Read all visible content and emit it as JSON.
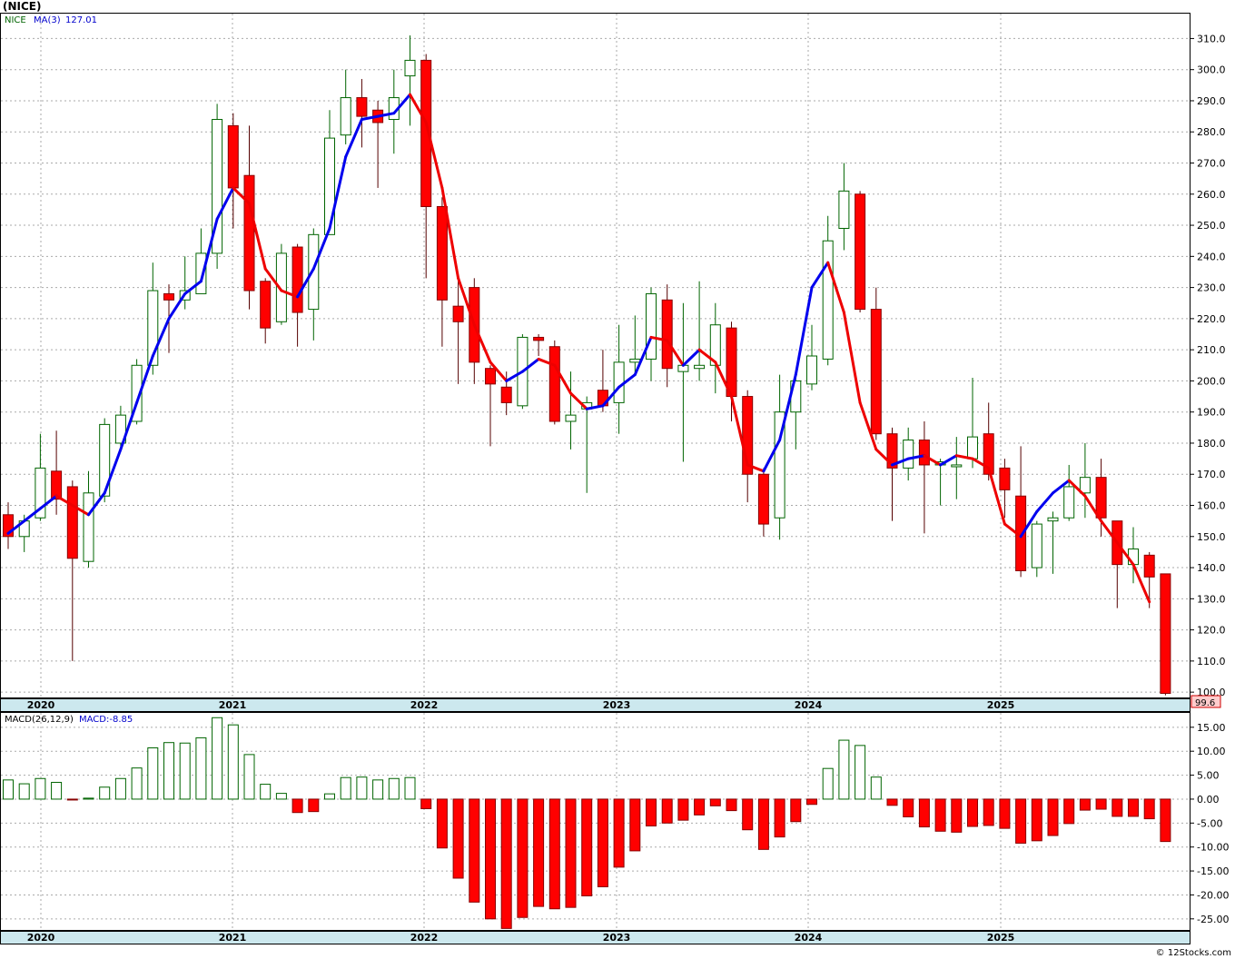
{
  "chart_data": [
    {
      "type": "candlestick",
      "title": "(NICE)",
      "symbol": "NICE",
      "ma_label": "MA(3)",
      "ma_value": "127.01",
      "last_price_label": "99.6",
      "ylim": [
        98,
        318
      ],
      "y_ticks": [
        100,
        110,
        120,
        130,
        140,
        150,
        160,
        170,
        180,
        190,
        200,
        210,
        220,
        230,
        240,
        250,
        260,
        270,
        280,
        290,
        300,
        310
      ],
      "y_tick_labels": [
        "100.0",
        "110.0",
        "120.0",
        "130.0",
        "140.0",
        "150.0",
        "160.0",
        "170.0",
        "180.0",
        "190.0",
        "200.0",
        "210.0",
        "220.0",
        "230.0",
        "240.0",
        "250.0",
        "260.0",
        "270.0",
        "280.0",
        "290.0",
        "300.0",
        "310.0"
      ],
      "x_year_labels": [
        "2020",
        "2021",
        "2022",
        "2023",
        "2024",
        "2025"
      ],
      "candles": [
        {
          "o": 157,
          "h": 161,
          "l": 146,
          "c": 150
        },
        {
          "o": 150,
          "h": 157,
          "l": 145,
          "c": 155
        },
        {
          "o": 156,
          "h": 183,
          "l": 155,
          "c": 172
        },
        {
          "o": 171,
          "h": 184,
          "l": 157,
          "c": 162
        },
        {
          "o": 166,
          "h": 168,
          "l": 110,
          "c": 143
        },
        {
          "o": 142,
          "h": 171,
          "l": 140,
          "c": 164
        },
        {
          "o": 163,
          "h": 188,
          "l": 161,
          "c": 186
        },
        {
          "o": 180,
          "h": 192,
          "l": 178,
          "c": 189
        },
        {
          "o": 187,
          "h": 207,
          "l": 186,
          "c": 205
        },
        {
          "o": 205,
          "h": 238,
          "l": 202,
          "c": 229
        },
        {
          "o": 228,
          "h": 231,
          "l": 209,
          "c": 226
        },
        {
          "o": 226,
          "h": 240,
          "l": 223,
          "c": 229
        },
        {
          "o": 228,
          "h": 249,
          "l": 228,
          "c": 241
        },
        {
          "o": 241,
          "h": 289,
          "l": 236,
          "c": 284
        },
        {
          "o": 282,
          "h": 286,
          "l": 249,
          "c": 262
        },
        {
          "o": 266,
          "h": 282,
          "l": 223,
          "c": 229
        },
        {
          "o": 232,
          "h": 233,
          "l": 212,
          "c": 217
        },
        {
          "o": 219,
          "h": 244,
          "l": 218,
          "c": 241
        },
        {
          "o": 243,
          "h": 244,
          "l": 211,
          "c": 222
        },
        {
          "o": 223,
          "h": 249,
          "l": 213,
          "c": 247
        },
        {
          "o": 247,
          "h": 287,
          "l": 247,
          "c": 278
        },
        {
          "o": 279,
          "h": 300,
          "l": 276,
          "c": 291
        },
        {
          "o": 291,
          "h": 297,
          "l": 275,
          "c": 285
        },
        {
          "o": 287,
          "h": 290,
          "l": 262,
          "c": 283
        },
        {
          "o": 284,
          "h": 300,
          "l": 273,
          "c": 291
        },
        {
          "o": 298,
          "h": 311,
          "l": 282,
          "c": 303
        },
        {
          "o": 303,
          "h": 305,
          "l": 233,
          "c": 256
        },
        {
          "o": 256,
          "h": 259,
          "l": 211,
          "c": 226
        },
        {
          "o": 224,
          "h": 234,
          "l": 199,
          "c": 219
        },
        {
          "o": 230,
          "h": 233,
          "l": 199,
          "c": 206
        },
        {
          "o": 204,
          "h": 205,
          "l": 179,
          "c": 199
        },
        {
          "o": 198,
          "h": 203,
          "l": 189,
          "c": 193
        },
        {
          "o": 192,
          "h": 215,
          "l": 191,
          "c": 214
        },
        {
          "o": 214,
          "h": 215,
          "l": 208,
          "c": 213
        },
        {
          "o": 211,
          "h": 213,
          "l": 186,
          "c": 187
        },
        {
          "o": 187,
          "h": 203,
          "l": 178,
          "c": 189
        },
        {
          "o": 191,
          "h": 195,
          "l": 164,
          "c": 193
        },
        {
          "o": 197,
          "h": 210,
          "l": 190,
          "c": 192
        },
        {
          "o": 193,
          "h": 218,
          "l": 183,
          "c": 206
        },
        {
          "o": 206,
          "h": 221,
          "l": 202,
          "c": 207
        },
        {
          "o": 207,
          "h": 230,
          "l": 200,
          "c": 228
        },
        {
          "o": 226,
          "h": 231,
          "l": 198,
          "c": 204
        },
        {
          "o": 203,
          "h": 225,
          "l": 174,
          "c": 205
        },
        {
          "o": 204,
          "h": 232,
          "l": 200,
          "c": 205
        },
        {
          "o": 205,
          "h": 225,
          "l": 196,
          "c": 218
        },
        {
          "o": 217,
          "h": 219,
          "l": 187,
          "c": 195
        },
        {
          "o": 195,
          "h": 197,
          "l": 161,
          "c": 170
        },
        {
          "o": 170,
          "h": 172,
          "l": 150,
          "c": 154
        },
        {
          "o": 156,
          "h": 202,
          "l": 149,
          "c": 190
        },
        {
          "o": 190,
          "h": 202,
          "l": 178,
          "c": 200
        },
        {
          "o": 199,
          "h": 218,
          "l": 197,
          "c": 208
        },
        {
          "o": 207,
          "h": 253,
          "l": 205,
          "c": 245
        },
        {
          "o": 249,
          "h": 270,
          "l": 242,
          "c": 261
        },
        {
          "o": 260,
          "h": 261,
          "l": 222,
          "c": 223
        },
        {
          "o": 223,
          "h": 230,
          "l": 181,
          "c": 183
        },
        {
          "o": 183,
          "h": 185,
          "l": 155,
          "c": 172
        },
        {
          "o": 172,
          "h": 185,
          "l": 168,
          "c": 181
        },
        {
          "o": 181,
          "h": 187,
          "l": 151,
          "c": 173
        },
        {
          "o": 173,
          "h": 175,
          "l": 160,
          "c": 174
        },
        {
          "o": 173,
          "h": 182,
          "l": 162,
          "c": 173
        },
        {
          "o": 175,
          "h": 201,
          "l": 172,
          "c": 182
        },
        {
          "o": 183,
          "h": 193,
          "l": 168,
          "c": 170
        },
        {
          "o": 172,
          "h": 175,
          "l": 156,
          "c": 165
        },
        {
          "o": 163,
          "h": 179,
          "l": 137,
          "c": 139
        },
        {
          "o": 140,
          "h": 155,
          "l": 137,
          "c": 154
        },
        {
          "o": 155,
          "h": 158,
          "l": 138,
          "c": 156
        },
        {
          "o": 156,
          "h": 173,
          "l": 155,
          "c": 166
        },
        {
          "o": 164,
          "h": 180,
          "l": 156,
          "c": 169
        },
        {
          "o": 169,
          "h": 175,
          "l": 150,
          "c": 156
        },
        {
          "o": 155,
          "h": 155,
          "l": 127,
          "c": 141
        },
        {
          "o": 141,
          "h": 153,
          "l": 135,
          "c": 146
        },
        {
          "o": 144,
          "h": 145,
          "l": 127,
          "c": 137
        },
        {
          "o": 138,
          "h": 138,
          "l": 99,
          "c": 99.6
        }
      ],
      "ma3": [
        151,
        155,
        159,
        163,
        160,
        157,
        164,
        178,
        193,
        208,
        220,
        228,
        232,
        252,
        262,
        257,
        236,
        229,
        227,
        236,
        249,
        272,
        284,
        285,
        286,
        292,
        283,
        262,
        233,
        218,
        206,
        200,
        203,
        207,
        205,
        196,
        191,
        192,
        198,
        202,
        214,
        213,
        205,
        210,
        206,
        195,
        173,
        171,
        181,
        202,
        230,
        238,
        222,
        193,
        178,
        173,
        175,
        176,
        173,
        176,
        175,
        172,
        154,
        150,
        158,
        164,
        168,
        163,
        155,
        148,
        141,
        129
      ],
      "ma3_direction": [
        "u",
        "u",
        "u",
        "u",
        "d",
        "d",
        "u",
        "u",
        "u",
        "u",
        "u",
        "u",
        "u",
        "u",
        "u",
        "d",
        "d",
        "d",
        "d",
        "u",
        "u",
        "u",
        "u",
        "u",
        "u",
        "u",
        "d",
        "d",
        "d",
        "d",
        "d",
        "d",
        "u",
        "u",
        "d",
        "d",
        "d",
        "u",
        "u",
        "u",
        "u",
        "d",
        "d",
        "u",
        "d",
        "d",
        "d",
        "d",
        "u",
        "u",
        "u",
        "u",
        "d",
        "d",
        "d",
        "d",
        "u",
        "u",
        "d",
        "u",
        "d",
        "d",
        "d",
        "d",
        "u",
        "u",
        "u",
        "d",
        "d",
        "d",
        "d",
        "d"
      ]
    },
    {
      "type": "bar",
      "title": "MACD(26,12,9)",
      "value_label": "MACD:-8.85",
      "ylim": [
        -27.5,
        18
      ],
      "y_ticks": [
        15,
        10,
        5,
        0,
        -5,
        -10,
        -15,
        -20,
        -25
      ],
      "y_tick_labels": [
        "15.00",
        "10.00",
        "5.00",
        "0.00",
        "-5.00",
        "-10.00",
        "-15.00",
        "-20.00",
        "-25.00"
      ],
      "x_year_labels": [
        "2020",
        "2021",
        "2022",
        "2023",
        "2024",
        "2025"
      ],
      "values": [
        4.0,
        3.2,
        4.3,
        3.5,
        -0.1,
        0.2,
        2.5,
        4.3,
        6.5,
        10.7,
        11.8,
        11.7,
        12.8,
        17.0,
        15.5,
        9.3,
        3.1,
        1.2,
        -2.8,
        -2.6,
        1.1,
        4.5,
        4.6,
        4.0,
        4.3,
        4.5,
        -2.0,
        -10.2,
        -16.5,
        -21.5,
        -25.0,
        -27.0,
        -24.7,
        -22.4,
        -22.9,
        -22.6,
        -20.2,
        -18.3,
        -14.2,
        -10.8,
        -5.6,
        -5.0,
        -4.4,
        -3.3,
        -1.4,
        -2.4,
        -6.4,
        -10.5,
        -7.9,
        -4.7,
        -1.1,
        6.4,
        12.3,
        11.2,
        4.6,
        -1.3,
        -3.7,
        -5.8,
        -6.7,
        -6.9,
        -5.7,
        -5.5,
        -6.1,
        -9.2,
        -8.7,
        -7.6,
        -5.1,
        -2.3,
        -2.1,
        -3.6,
        -3.6,
        -4.1,
        -8.85
      ]
    }
  ],
  "footer": {
    "credit": "© 12Stocks.com"
  }
}
